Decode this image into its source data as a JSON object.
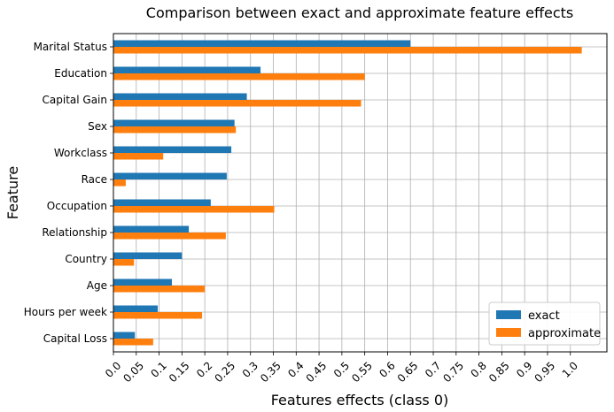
{
  "chart_data": {
    "type": "bar",
    "orientation": "horizontal",
    "title": "Comparison between exact and approximate feature effects",
    "xlabel": "Features  effects (class 0)",
    "ylabel": "Feature",
    "xlim": [
      0.0,
      1.08
    ],
    "x_ticks": [
      "0.0",
      "0.05",
      "0.1",
      "0.15",
      "0.2",
      "0.25",
      "0.3",
      "0.35",
      "0.4",
      "0.45",
      "0.5",
      "0.55",
      "0.6",
      "0.65",
      "0.7",
      "0.75",
      "0.8",
      "0.85",
      "0.9",
      "0.95",
      "1.0"
    ],
    "grid": true,
    "legend_position": "bottom-right",
    "categories": [
      "Marital Status",
      "Education",
      "Capital Gain",
      "Sex",
      "Workclass",
      "Race",
      "Occupation",
      "Relationship",
      "Country",
      "Age",
      "Hours per week",
      "Capital Loss"
    ],
    "series": [
      {
        "name": "exact",
        "color": "#1f77b4",
        "values": [
          0.65,
          0.322,
          0.292,
          0.265,
          0.258,
          0.248,
          0.213,
          0.165,
          0.15,
          0.128,
          0.097,
          0.047
        ]
      },
      {
        "name": "approximate",
        "color": "#ff7f0e",
        "values": [
          1.025,
          0.55,
          0.542,
          0.268,
          0.109,
          0.027,
          0.352,
          0.246,
          0.045,
          0.2,
          0.194,
          0.087
        ]
      }
    ]
  }
}
